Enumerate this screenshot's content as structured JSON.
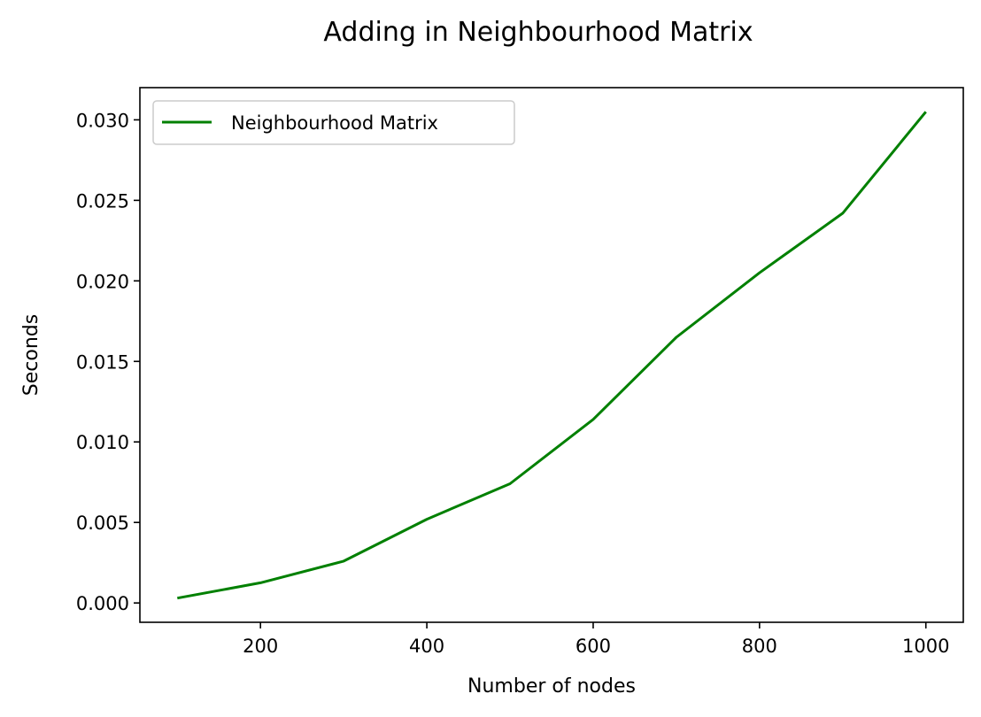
{
  "chart_data": {
    "type": "line",
    "title": "Adding in Neighbourhood Matrix",
    "xlabel": "Number of nodes",
    "ylabel": "Seconds",
    "xlim": [
      55,
      1045
    ],
    "ylim": [
      -0.0012,
      0.032
    ],
    "xticks": [
      200,
      400,
      600,
      800,
      1000
    ],
    "yticks": [
      0.0,
      0.005,
      0.01,
      0.015,
      0.02,
      0.025,
      0.03
    ],
    "ytick_labels": [
      "0.000",
      "0.005",
      "0.010",
      "0.015",
      "0.020",
      "0.025",
      "0.030"
    ],
    "grid": false,
    "legend_position": "top-left",
    "series": [
      {
        "name": "Neighbourhood Matrix",
        "color": "#008000",
        "x": [
          100,
          200,
          300,
          400,
          500,
          600,
          700,
          800,
          900,
          1000
        ],
        "y": [
          0.0003,
          0.00125,
          0.0026,
          0.0052,
          0.0074,
          0.0114,
          0.0165,
          0.0205,
          0.0242,
          0.0305
        ]
      }
    ]
  }
}
